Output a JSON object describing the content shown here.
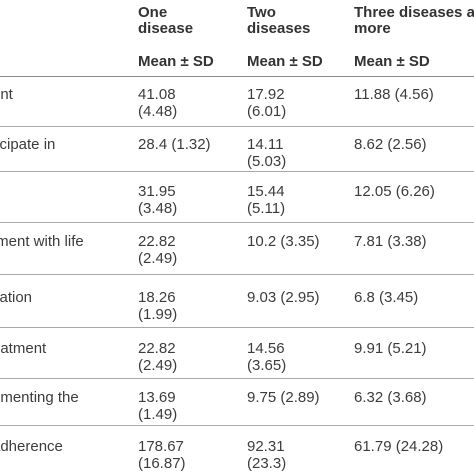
{
  "header": {
    "col1": [
      "One",
      "disease"
    ],
    "col2": [
      "Two",
      "diseases"
    ],
    "col3": [
      "Three diseases a",
      "more"
    ],
    "sub1": "Mean ± SD",
    "sub2": "Mean ± SD",
    "sub3": "Mean ± SD"
  },
  "rows": [
    {
      "label": "ent",
      "c1": [
        "41.08",
        "(4.48)"
      ],
      "c2": [
        "17.92",
        "(6.01)"
      ],
      "c3": [
        "11.88 (4.56)",
        ""
      ]
    },
    {
      "label": "ticipate in",
      "c1": [
        "28.4 (1.32)",
        ""
      ],
      "c2": [
        "14.11",
        "(5.03)"
      ],
      "c3": [
        "8.62 (2.56)",
        ""
      ]
    },
    {
      "label": "",
      "c1": [
        "31.95",
        "(3.48)"
      ],
      "c2": [
        "15.44",
        "(5.11)"
      ],
      "c3": [
        "12.05 (6.26)",
        ""
      ]
    },
    {
      "label": "tment with life",
      "c1": [
        "22.82",
        "(2.49)"
      ],
      "c2": [
        "10.2 (3.35)",
        ""
      ],
      "c3": [
        "7.81 (3.38)",
        ""
      ]
    },
    {
      "label": "cation",
      "c1": [
        "18.26",
        "(1.99)"
      ],
      "c2": [
        "9.03 (2.95)",
        ""
      ],
      "c3": [
        "6.8 (3.45)",
        ""
      ]
    },
    {
      "label": "eatment",
      "c1": [
        "22.82",
        "(2.49)"
      ],
      "c2": [
        "14.56",
        "(3.65)"
      ],
      "c3": [
        "9.91 (5.21)",
        ""
      ]
    },
    {
      "label": "ementing the",
      "c1": [
        "13.69",
        "(1.49)"
      ],
      "c2": [
        "9.75 (2.89)",
        ""
      ],
      "c3": [
        "6.32 (3.68)",
        ""
      ]
    },
    {
      "label": "adherence",
      "c1": [
        "178.67",
        "(16.87)"
      ],
      "c2": [
        "92.31",
        "(23.3)"
      ],
      "c3": [
        "61.79 (24.28)",
        ""
      ]
    }
  ]
}
